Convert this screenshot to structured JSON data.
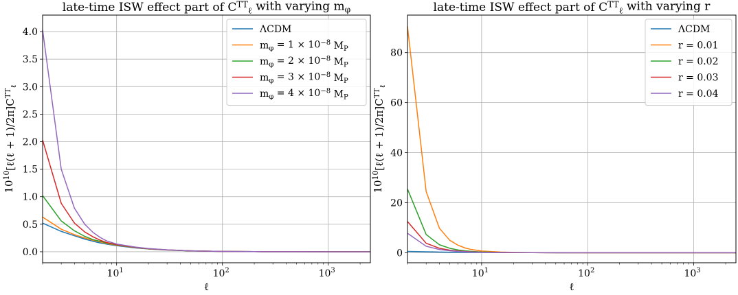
{
  "chart_data": [
    {
      "type": "line",
      "title": "late-time ISW effect part of C_ℓ^TT with varying m_φ",
      "xlabel": "ℓ",
      "ylabel": "10^10[ℓ(ℓ + 1)/2π]C_ℓ^TT",
      "x_scale": "log",
      "xlim": [
        2,
        2500
      ],
      "ylim": [
        -0.2,
        4.3
      ],
      "xticks": [
        10,
        100,
        1000
      ],
      "xtick_labels": [
        "10^1",
        "10^2",
        "10^3"
      ],
      "yticks": [
        0.0,
        0.5,
        1.0,
        1.5,
        2.0,
        2.5,
        3.0,
        3.5,
        4.0
      ],
      "ytick_labels": [
        "0.0",
        "0.5",
        "1.0",
        "1.5",
        "2.0",
        "2.5",
        "3.0",
        "3.5",
        "4.0"
      ],
      "grid": true,
      "legend_position": "top-right",
      "x": [
        2,
        3,
        4,
        5,
        6,
        7,
        8,
        10,
        15,
        20,
        30,
        50,
        100,
        200,
        500,
        1000,
        2500
      ],
      "series": [
        {
          "name": "ΛCDM",
          "color": "#1f77b4",
          "values": [
            0.52,
            0.37,
            0.29,
            0.23,
            0.19,
            0.16,
            0.14,
            0.11,
            0.07,
            0.05,
            0.03,
            0.015,
            0.005,
            0.002,
            0.001,
            0.0,
            0.0
          ]
        },
        {
          "name": "m_φ = 1 × 10^−8 M_P",
          "color": "#ff7f0e",
          "values": [
            0.63,
            0.41,
            0.31,
            0.25,
            0.21,
            0.18,
            0.15,
            0.12,
            0.075,
            0.052,
            0.032,
            0.016,
            0.005,
            0.002,
            0.001,
            0.0,
            0.0
          ]
        },
        {
          "name": "m_φ = 2 × 10^−8 M_P",
          "color": "#2ca02c",
          "values": [
            1.02,
            0.56,
            0.38,
            0.28,
            0.22,
            0.19,
            0.16,
            0.125,
            0.078,
            0.053,
            0.033,
            0.016,
            0.005,
            0.002,
            0.001,
            0.0,
            0.0
          ]
        },
        {
          "name": "m_φ = 3 × 10^−8 M_P",
          "color": "#d62728",
          "values": [
            2.03,
            0.88,
            0.52,
            0.36,
            0.27,
            0.21,
            0.17,
            0.13,
            0.08,
            0.055,
            0.034,
            0.017,
            0.005,
            0.002,
            0.001,
            0.0,
            0.0
          ]
        },
        {
          "name": "m_φ = 4 × 10^−8 M_P",
          "color": "#9467bd",
          "values": [
            4.03,
            1.5,
            0.79,
            0.5,
            0.35,
            0.26,
            0.2,
            0.14,
            0.085,
            0.058,
            0.035,
            0.017,
            0.005,
            0.002,
            0.001,
            0.0,
            0.0
          ]
        }
      ]
    },
    {
      "type": "line",
      "title": "late-time ISW effect part of C_ℓ^TT with varying r",
      "xlabel": "ℓ",
      "ylabel": "10^10[ℓ(ℓ + 1)/2π]C_ℓ^TT",
      "x_scale": "log",
      "xlim": [
        2,
        2500
      ],
      "ylim": [
        -4,
        95
      ],
      "xticks": [
        10,
        100,
        1000
      ],
      "xtick_labels": [
        "10^1",
        "10^2",
        "10^3"
      ],
      "yticks": [
        0,
        20,
        40,
        60,
        80
      ],
      "ytick_labels": [
        "0",
        "20",
        "40",
        "60",
        "80"
      ],
      "grid": true,
      "legend_position": "top-right",
      "x": [
        2,
        3,
        4,
        5,
        6,
        7,
        8,
        10,
        15,
        20,
        30,
        50,
        100,
        200,
        500,
        1000,
        2500
      ],
      "series": [
        {
          "name": "ΛCDM",
          "color": "#1f77b4",
          "values": [
            0.52,
            0.37,
            0.29,
            0.23,
            0.19,
            0.16,
            0.14,
            0.11,
            0.07,
            0.05,
            0.03,
            0.015,
            0.005,
            0.002,
            0.001,
            0.0,
            0.0
          ]
        },
        {
          "name": "r = 0.01",
          "color": "#ff7f0e",
          "values": [
            90.5,
            24.5,
            9.8,
            5.0,
            3.0,
            1.9,
            1.3,
            0.7,
            0.3,
            0.15,
            0.07,
            0.03,
            0.01,
            0.0,
            0.0,
            0.0,
            0.0
          ]
        },
        {
          "name": "r = 0.02",
          "color": "#2ca02c",
          "values": [
            25.5,
            7.3,
            3.2,
            1.8,
            1.1,
            0.75,
            0.55,
            0.33,
            0.15,
            0.09,
            0.05,
            0.02,
            0.006,
            0.0,
            0.0,
            0.0,
            0.0
          ]
        },
        {
          "name": "r = 0.03",
          "color": "#d62728",
          "values": [
            12.5,
            3.8,
            1.8,
            1.05,
            0.68,
            0.48,
            0.36,
            0.23,
            0.11,
            0.07,
            0.04,
            0.018,
            0.006,
            0.0,
            0.0,
            0.0,
            0.0
          ]
        },
        {
          "name": "r = 0.04",
          "color": "#9467bd",
          "values": [
            7.8,
            2.6,
            1.3,
            0.8,
            0.53,
            0.38,
            0.29,
            0.19,
            0.1,
            0.065,
            0.037,
            0.017,
            0.005,
            0.0,
            0.0,
            0.0,
            0.0
          ]
        }
      ]
    }
  ]
}
